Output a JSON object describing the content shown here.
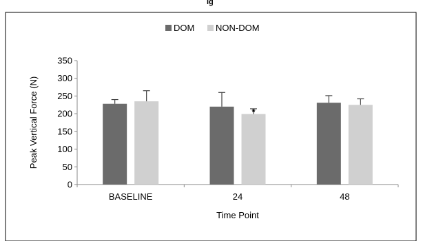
{
  "page": {
    "header_text": "ig"
  },
  "chart_data": {
    "type": "bar",
    "title": "",
    "categories": [
      "BASELINE",
      "24",
      "48"
    ],
    "series": [
      {
        "name": "DOM",
        "values": [
          228,
          220,
          231
        ],
        "errors": [
          12,
          40,
          20
        ],
        "color": "#6b6b6b"
      },
      {
        "name": "NON-DOM",
        "values": [
          235,
          199,
          225
        ],
        "errors": [
          30,
          15,
          17
        ],
        "color": "#d0d0d0"
      }
    ],
    "xlabel": "Time Point",
    "ylabel": "Peak Vertical Force (N)",
    "ylim": [
      0,
      350
    ],
    "yticks": [
      0,
      50,
      100,
      150,
      200,
      250,
      300,
      350
    ],
    "yticklabels": [
      "0",
      "50",
      "100",
      "150",
      "200",
      "250",
      "300",
      "350"
    ],
    "annotations": [
      {
        "category": "24",
        "series": "NON-DOM",
        "text": "*"
      }
    ],
    "grid": false,
    "legend": "top-center"
  }
}
